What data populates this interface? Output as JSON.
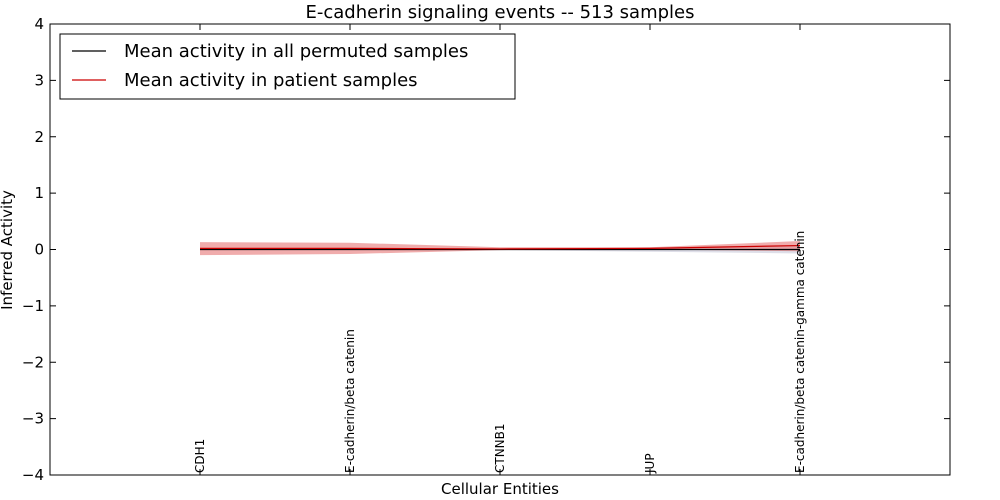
{
  "chart_data": {
    "type": "line",
    "title": "E-cadherin signaling events -- 513 samples",
    "xlabel": "Cellular Entities",
    "ylabel": "Inferred Activity",
    "ylim": [
      -4,
      4
    ],
    "xlim": [
      -1,
      5
    ],
    "yticks": [
      -4,
      -3,
      -2,
      -1,
      0,
      1,
      2,
      3,
      4
    ],
    "ytick_labels": [
      "−4",
      "−3",
      "−2",
      "−1",
      "0",
      "1",
      "2",
      "3",
      "4"
    ],
    "categories": [
      "CDH1",
      "E-cadherin/beta catenin",
      "CTNNB1",
      "JUP",
      "E-cadherin/beta catenin-gamma catenin"
    ],
    "series": [
      {
        "name": "Mean activity in all permuted samples",
        "color": "#000000",
        "values": [
          0.0,
          0.0,
          0.0,
          0.0,
          0.0
        ],
        "band_low": [
          -0.01,
          -0.01,
          -0.01,
          -0.04,
          -0.07
        ],
        "band_high": [
          0.01,
          0.01,
          0.01,
          0.04,
          0.07
        ],
        "band_color": "#c8c8d8"
      },
      {
        "name": "Mean activity in patient samples",
        "color": "#cc0000",
        "values": [
          0.02,
          0.02,
          0.01,
          0.02,
          0.07
        ],
        "band_low": [
          -0.1,
          -0.08,
          -0.01,
          0.0,
          -0.03
        ],
        "band_high": [
          0.13,
          0.12,
          0.04,
          0.04,
          0.15
        ],
        "band_color": "#e88080"
      }
    ],
    "legend_position": "top-left"
  }
}
